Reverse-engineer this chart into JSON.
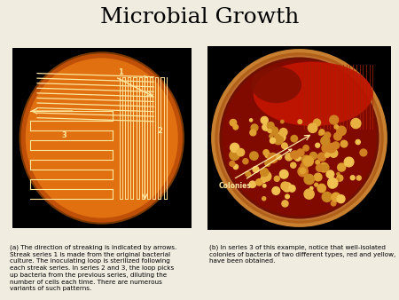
{
  "title": "Microbial Growth",
  "title_fontsize": 18,
  "title_font": "serif",
  "bg_color": "#f0ece0",
  "caption_a": "(a) The direction of streaking is indicated by arrows.\nStreak series 1 is made from the original bacterial\nculture. The inoculating loop is sterilized following\neach streak series. In series 2 and 3, the loop picks\nup bacteria from the previous series, diluting the\nnumber of cells each time. There are numerous\nvariants of such patterns.",
  "caption_b": "(b) In series 3 of this example, notice that well-isolated\ncolonies of bacteria of two different types, red and yellow,\nhave been obtained.",
  "caption_fontsize": 5.2,
  "plate_a_orange": "#e07010",
  "plate_a_edge": "#8b4000",
  "plate_b_inner": "#8b1500",
  "plate_b_edge": "#c07020",
  "streak_color": "#ffe8a0",
  "streak_color2": "#ffcc60",
  "black": "#000000",
  "white": "#ffffff"
}
